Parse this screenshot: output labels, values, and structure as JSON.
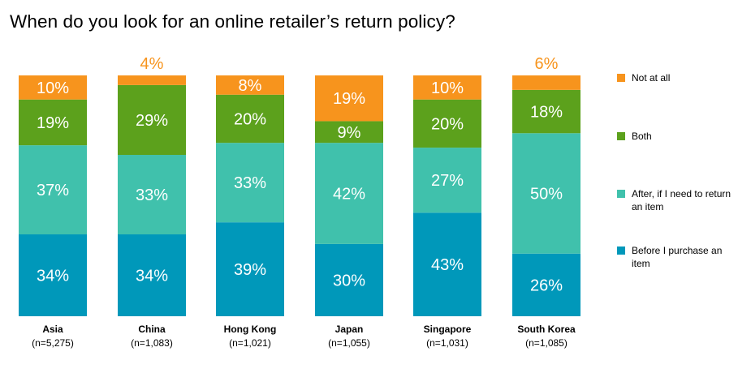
{
  "chart_data": {
    "type": "bar",
    "stacked": true,
    "title": "When do you look for an online retailer’s return policy?",
    "categories": [
      {
        "name": "Asia",
        "n": "(n=5,275)"
      },
      {
        "name": "China",
        "n": "(n=1,083)"
      },
      {
        "name": "Hong Kong",
        "n": "(n=1,021)"
      },
      {
        "name": "Japan",
        "n": "(n=1,055)"
      },
      {
        "name": "Singapore",
        "n": "(n=1,031)"
      },
      {
        "name": "South Korea",
        "n": "(n=1,085)"
      }
    ],
    "series": [
      {
        "name": "Before I purchase an item",
        "color": "#0098BA",
        "values": [
          34,
          34,
          39,
          30,
          43,
          26
        ]
      },
      {
        "name": "After, if I need to return an item",
        "color": "#40C1AC",
        "values": [
          37,
          33,
          33,
          42,
          27,
          50
        ]
      },
      {
        "name": "Both",
        "color": "#5CA11C",
        "values": [
          19,
          29,
          20,
          9,
          20,
          18
        ]
      },
      {
        "name": "Not at all",
        "color": "#F7941D",
        "values": [
          10,
          4,
          8,
          19,
          10,
          6
        ]
      }
    ],
    "value_suffix": "%",
    "ylim": [
      0,
      100
    ],
    "grid": false,
    "legend_position": "right",
    "legend_order": [
      "Not at all",
      "Both",
      "After, if I need to return an item",
      "Before I purchase an item"
    ]
  }
}
